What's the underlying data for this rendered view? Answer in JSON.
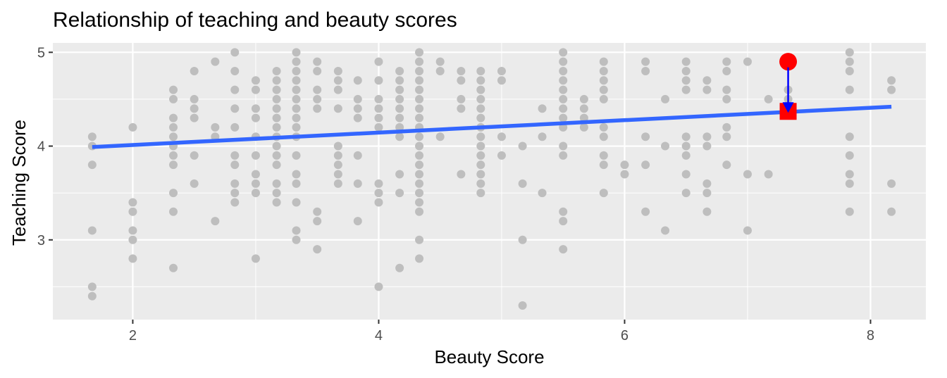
{
  "chart_data": {
    "type": "scatter",
    "title": "Relationship of teaching and beauty scores",
    "xlabel": "Beauty Score",
    "ylabel": "Teaching Score",
    "xlim": [
      1.35,
      8.45
    ],
    "ylim": [
      2.15,
      5.1
    ],
    "x_ticks": [
      2,
      4,
      6,
      8
    ],
    "y_ticks": [
      3,
      4,
      5
    ],
    "x_tick_labels": [
      "2",
      "4",
      "6",
      "8"
    ],
    "y_tick_labels": [
      "3",
      "4",
      "5"
    ],
    "grid": true,
    "legend": "none",
    "colors": {
      "panel": "#ebebeb",
      "grid": "#ffffff",
      "points": "#bebebe",
      "fit_line": "#3366ff",
      "highlight": "#ff0000",
      "residual_arrow": "#0000ff"
    },
    "fit_line": {
      "x": [
        1.67,
        8.17
      ],
      "y": [
        3.99,
        4.42
      ]
    },
    "highlight_point": {
      "x": 7.33,
      "y": 4.9
    },
    "fitted_point": {
      "x": 7.33,
      "y": 4.37
    },
    "points": [
      [
        1.67,
        4.1
      ],
      [
        1.67,
        4.0
      ],
      [
        1.67,
        3.8
      ],
      [
        1.67,
        3.1
      ],
      [
        1.67,
        2.5
      ],
      [
        1.67,
        2.4
      ],
      [
        2.0,
        4.2
      ],
      [
        2.0,
        3.4
      ],
      [
        2.0,
        3.3
      ],
      [
        2.0,
        3.1
      ],
      [
        2.0,
        3.0
      ],
      [
        2.0,
        2.8
      ],
      [
        2.33,
        4.6
      ],
      [
        2.33,
        4.5
      ],
      [
        2.33,
        4.3
      ],
      [
        2.33,
        4.2
      ],
      [
        2.33,
        4.1
      ],
      [
        2.33,
        4.0
      ],
      [
        2.33,
        3.9
      ],
      [
        2.33,
        3.8
      ],
      [
        2.33,
        3.5
      ],
      [
        2.33,
        3.3
      ],
      [
        2.33,
        2.7
      ],
      [
        2.5,
        4.8
      ],
      [
        2.5,
        4.5
      ],
      [
        2.5,
        4.4
      ],
      [
        2.5,
        4.3
      ],
      [
        2.5,
        3.9
      ],
      [
        2.5,
        3.6
      ],
      [
        2.67,
        4.9
      ],
      [
        2.67,
        4.2
      ],
      [
        2.67,
        4.1
      ],
      [
        2.67,
        3.2
      ],
      [
        2.83,
        5.0
      ],
      [
        2.83,
        4.8
      ],
      [
        2.83,
        4.6
      ],
      [
        2.83,
        4.4
      ],
      [
        2.83,
        4.2
      ],
      [
        2.83,
        3.9
      ],
      [
        2.83,
        3.8
      ],
      [
        2.83,
        3.6
      ],
      [
        2.83,
        3.5
      ],
      [
        2.83,
        3.4
      ],
      [
        3.0,
        4.7
      ],
      [
        3.0,
        4.6
      ],
      [
        3.0,
        4.4
      ],
      [
        3.0,
        4.3
      ],
      [
        3.0,
        4.1
      ],
      [
        3.0,
        3.9
      ],
      [
        3.0,
        3.7
      ],
      [
        3.0,
        3.6
      ],
      [
        3.0,
        3.5
      ],
      [
        3.0,
        2.8
      ],
      [
        3.17,
        4.8
      ],
      [
        3.17,
        4.7
      ],
      [
        3.17,
        4.6
      ],
      [
        3.17,
        4.5
      ],
      [
        3.17,
        4.4
      ],
      [
        3.17,
        4.3
      ],
      [
        3.17,
        4.2
      ],
      [
        3.17,
        4.1
      ],
      [
        3.17,
        4.0
      ],
      [
        3.17,
        3.9
      ],
      [
        3.17,
        3.8
      ],
      [
        3.17,
        3.6
      ],
      [
        3.17,
        3.5
      ],
      [
        3.17,
        3.4
      ],
      [
        3.33,
        5.0
      ],
      [
        3.33,
        4.9
      ],
      [
        3.33,
        4.8
      ],
      [
        3.33,
        4.7
      ],
      [
        3.33,
        4.6
      ],
      [
        3.33,
        4.5
      ],
      [
        3.33,
        4.4
      ],
      [
        3.33,
        4.3
      ],
      [
        3.33,
        4.2
      ],
      [
        3.33,
        4.1
      ],
      [
        3.33,
        3.9
      ],
      [
        3.33,
        3.7
      ],
      [
        3.33,
        3.6
      ],
      [
        3.33,
        3.4
      ],
      [
        3.33,
        3.1
      ],
      [
        3.33,
        3.0
      ],
      [
        3.5,
        4.9
      ],
      [
        3.5,
        4.8
      ],
      [
        3.5,
        4.6
      ],
      [
        3.5,
        4.5
      ],
      [
        3.5,
        4.4
      ],
      [
        3.5,
        3.3
      ],
      [
        3.5,
        3.2
      ],
      [
        3.5,
        2.9
      ],
      [
        3.67,
        4.8
      ],
      [
        3.67,
        4.7
      ],
      [
        3.67,
        4.6
      ],
      [
        3.67,
        4.4
      ],
      [
        3.67,
        4.0
      ],
      [
        3.67,
        3.9
      ],
      [
        3.67,
        3.8
      ],
      [
        3.67,
        3.7
      ],
      [
        3.67,
        3.6
      ],
      [
        3.83,
        4.7
      ],
      [
        3.83,
        4.5
      ],
      [
        3.83,
        4.4
      ],
      [
        3.83,
        4.3
      ],
      [
        3.83,
        3.9
      ],
      [
        3.83,
        3.6
      ],
      [
        3.83,
        3.2
      ],
      [
        4.0,
        4.9
      ],
      [
        4.0,
        4.7
      ],
      [
        4.0,
        4.5
      ],
      [
        4.0,
        4.4
      ],
      [
        4.0,
        4.3
      ],
      [
        4.0,
        4.2
      ],
      [
        4.0,
        3.6
      ],
      [
        4.0,
        3.5
      ],
      [
        4.0,
        3.4
      ],
      [
        4.0,
        2.5
      ],
      [
        4.17,
        4.8
      ],
      [
        4.17,
        4.7
      ],
      [
        4.17,
        4.6
      ],
      [
        4.17,
        4.5
      ],
      [
        4.17,
        4.4
      ],
      [
        4.17,
        4.3
      ],
      [
        4.17,
        4.2
      ],
      [
        4.17,
        4.1
      ],
      [
        4.17,
        3.7
      ],
      [
        4.17,
        3.5
      ],
      [
        4.17,
        2.7
      ],
      [
        4.33,
        5.0
      ],
      [
        4.33,
        4.9
      ],
      [
        4.33,
        4.8
      ],
      [
        4.33,
        4.7
      ],
      [
        4.33,
        4.6
      ],
      [
        4.33,
        4.5
      ],
      [
        4.33,
        4.4
      ],
      [
        4.33,
        4.3
      ],
      [
        4.33,
        4.2
      ],
      [
        4.33,
        4.1
      ],
      [
        4.33,
        4.0
      ],
      [
        4.33,
        3.9
      ],
      [
        4.33,
        3.8
      ],
      [
        4.33,
        3.7
      ],
      [
        4.33,
        3.6
      ],
      [
        4.33,
        3.5
      ],
      [
        4.33,
        3.4
      ],
      [
        4.33,
        3.3
      ],
      [
        4.33,
        3.0
      ],
      [
        4.33,
        2.8
      ],
      [
        4.5,
        4.9
      ],
      [
        4.5,
        4.8
      ],
      [
        4.5,
        4.1
      ],
      [
        4.67,
        4.8
      ],
      [
        4.67,
        4.7
      ],
      [
        4.67,
        4.5
      ],
      [
        4.67,
        4.4
      ],
      [
        4.67,
        3.7
      ],
      [
        4.83,
        4.8
      ],
      [
        4.83,
        4.7
      ],
      [
        4.83,
        4.6
      ],
      [
        4.83,
        4.5
      ],
      [
        4.83,
        4.4
      ],
      [
        4.83,
        4.3
      ],
      [
        4.83,
        4.2
      ],
      [
        4.83,
        4.1
      ],
      [
        4.83,
        4.0
      ],
      [
        4.83,
        3.9
      ],
      [
        4.83,
        3.8
      ],
      [
        4.83,
        3.7
      ],
      [
        4.83,
        3.6
      ],
      [
        4.83,
        3.5
      ],
      [
        5.0,
        4.8
      ],
      [
        5.0,
        4.7
      ],
      [
        5.0,
        4.1
      ],
      [
        5.0,
        3.9
      ],
      [
        5.17,
        4.0
      ],
      [
        5.17,
        3.6
      ],
      [
        5.17,
        3.0
      ],
      [
        5.17,
        2.3
      ],
      [
        5.33,
        4.4
      ],
      [
        5.33,
        4.1
      ],
      [
        5.33,
        3.5
      ],
      [
        5.5,
        5.0
      ],
      [
        5.5,
        4.9
      ],
      [
        5.5,
        4.8
      ],
      [
        5.5,
        4.7
      ],
      [
        5.5,
        4.6
      ],
      [
        5.5,
        4.5
      ],
      [
        5.5,
        4.4
      ],
      [
        5.5,
        4.3
      ],
      [
        5.5,
        4.2
      ],
      [
        5.5,
        4.0
      ],
      [
        5.5,
        3.9
      ],
      [
        5.5,
        3.3
      ],
      [
        5.5,
        3.2
      ],
      [
        5.5,
        2.9
      ],
      [
        5.67,
        4.5
      ],
      [
        5.67,
        4.4
      ],
      [
        5.67,
        4.3
      ],
      [
        5.67,
        4.2
      ],
      [
        5.83,
        4.9
      ],
      [
        5.83,
        4.8
      ],
      [
        5.83,
        4.7
      ],
      [
        5.83,
        4.6
      ],
      [
        5.83,
        4.5
      ],
      [
        5.83,
        4.2
      ],
      [
        5.83,
        4.1
      ],
      [
        5.83,
        3.9
      ],
      [
        5.83,
        3.8
      ],
      [
        5.83,
        3.5
      ],
      [
        6.0,
        3.8
      ],
      [
        6.0,
        3.7
      ],
      [
        6.17,
        4.9
      ],
      [
        6.17,
        4.8
      ],
      [
        6.17,
        4.1
      ],
      [
        6.17,
        3.8
      ],
      [
        6.17,
        3.3
      ],
      [
        6.33,
        4.5
      ],
      [
        6.33,
        4.0
      ],
      [
        6.33,
        3.1
      ],
      [
        6.5,
        4.9
      ],
      [
        6.5,
        4.8
      ],
      [
        6.5,
        4.7
      ],
      [
        6.5,
        4.6
      ],
      [
        6.5,
        4.1
      ],
      [
        6.5,
        4.0
      ],
      [
        6.5,
        3.9
      ],
      [
        6.5,
        3.7
      ],
      [
        6.5,
        3.5
      ],
      [
        6.67,
        4.7
      ],
      [
        6.67,
        4.6
      ],
      [
        6.67,
        4.1
      ],
      [
        6.67,
        4.0
      ],
      [
        6.67,
        3.6
      ],
      [
        6.67,
        3.5
      ],
      [
        6.67,
        3.3
      ],
      [
        6.83,
        4.9
      ],
      [
        6.83,
        4.8
      ],
      [
        6.83,
        4.6
      ],
      [
        6.83,
        4.5
      ],
      [
        6.83,
        4.2
      ],
      [
        6.83,
        4.1
      ],
      [
        6.83,
        3.8
      ],
      [
        7.0,
        4.9
      ],
      [
        7.0,
        3.7
      ],
      [
        7.0,
        3.1
      ],
      [
        7.17,
        4.5
      ],
      [
        7.17,
        3.7
      ],
      [
        7.33,
        4.6
      ],
      [
        7.33,
        4.5
      ],
      [
        7.83,
        5.0
      ],
      [
        7.83,
        4.9
      ],
      [
        7.83,
        4.8
      ],
      [
        7.83,
        4.6
      ],
      [
        7.83,
        4.1
      ],
      [
        7.83,
        3.9
      ],
      [
        7.83,
        3.7
      ],
      [
        7.83,
        3.6
      ],
      [
        7.83,
        3.3
      ],
      [
        8.17,
        4.7
      ],
      [
        8.17,
        4.6
      ],
      [
        8.17,
        3.6
      ],
      [
        8.17,
        3.3
      ]
    ]
  }
}
